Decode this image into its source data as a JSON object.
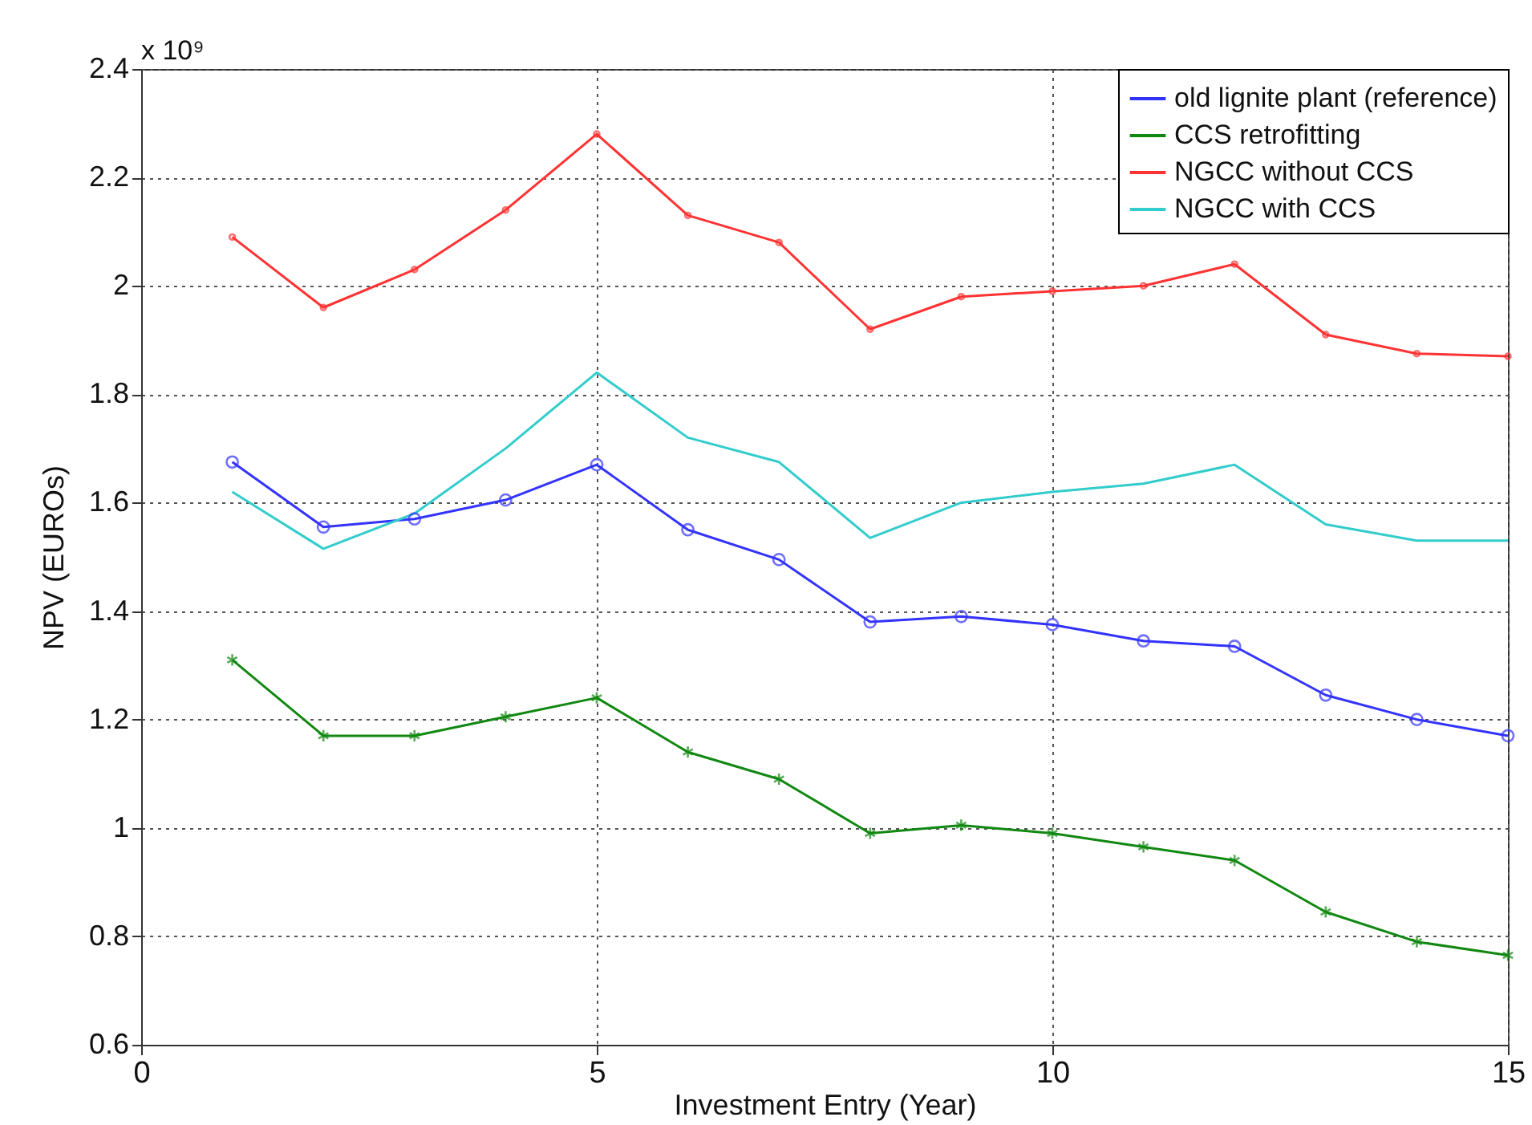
{
  "chart_data": {
    "type": "line",
    "xlabel": "Investment Entry (Year)",
    "ylabel": "NPV (EUROs)",
    "annotations": [
      "x 10⁹"
    ],
    "x": [
      1,
      2,
      3,
      4,
      5,
      6,
      7,
      8,
      9,
      10,
      11,
      12,
      13,
      14,
      15
    ],
    "xlim": [
      0,
      15
    ],
    "xticks": [
      0,
      5,
      10,
      15
    ],
    "ylim": [
      0.6,
      2.4
    ],
    "yticks": [
      0.6,
      0.8,
      1,
      1.2,
      1.4,
      1.6,
      1.8,
      2,
      2.2,
      2.4
    ],
    "grid": true,
    "legend": "top right",
    "line_style": "solid",
    "series": [
      {
        "name": "old lignite plant (reference)",
        "color": "#3333ff",
        "marker": "circle",
        "values": [
          1.675,
          1.555,
          1.57,
          1.605,
          1.67,
          1.55,
          1.495,
          1.38,
          1.39,
          1.375,
          1.345,
          1.335,
          1.245,
          1.2,
          1.17
        ]
      },
      {
        "name": "CCS retrofitting",
        "color": "#118811",
        "marker": "cross",
        "values": [
          1.31,
          1.17,
          1.17,
          1.205,
          1.24,
          1.14,
          1.09,
          0.99,
          1.005,
          0.99,
          0.965,
          0.94,
          0.845,
          0.79,
          0.765
        ]
      },
      {
        "name": "NGCC without CCS",
        "color": "#ff3333",
        "marker": "circle",
        "values": [
          2.09,
          1.96,
          2.03,
          2.14,
          2.28,
          2.13,
          2.08,
          1.92,
          1.98,
          1.99,
          2.0,
          2.04,
          1.91,
          1.875,
          1.87
        ]
      },
      {
        "name": "NGCC with CCS",
        "color": "#33cccc",
        "marker": "none",
        "values": [
          1.62,
          1.515,
          1.58,
          1.7,
          1.84,
          1.72,
          1.675,
          1.535,
          1.6,
          1.62,
          1.635,
          1.67,
          1.56,
          1.53,
          1.53
        ]
      }
    ]
  }
}
